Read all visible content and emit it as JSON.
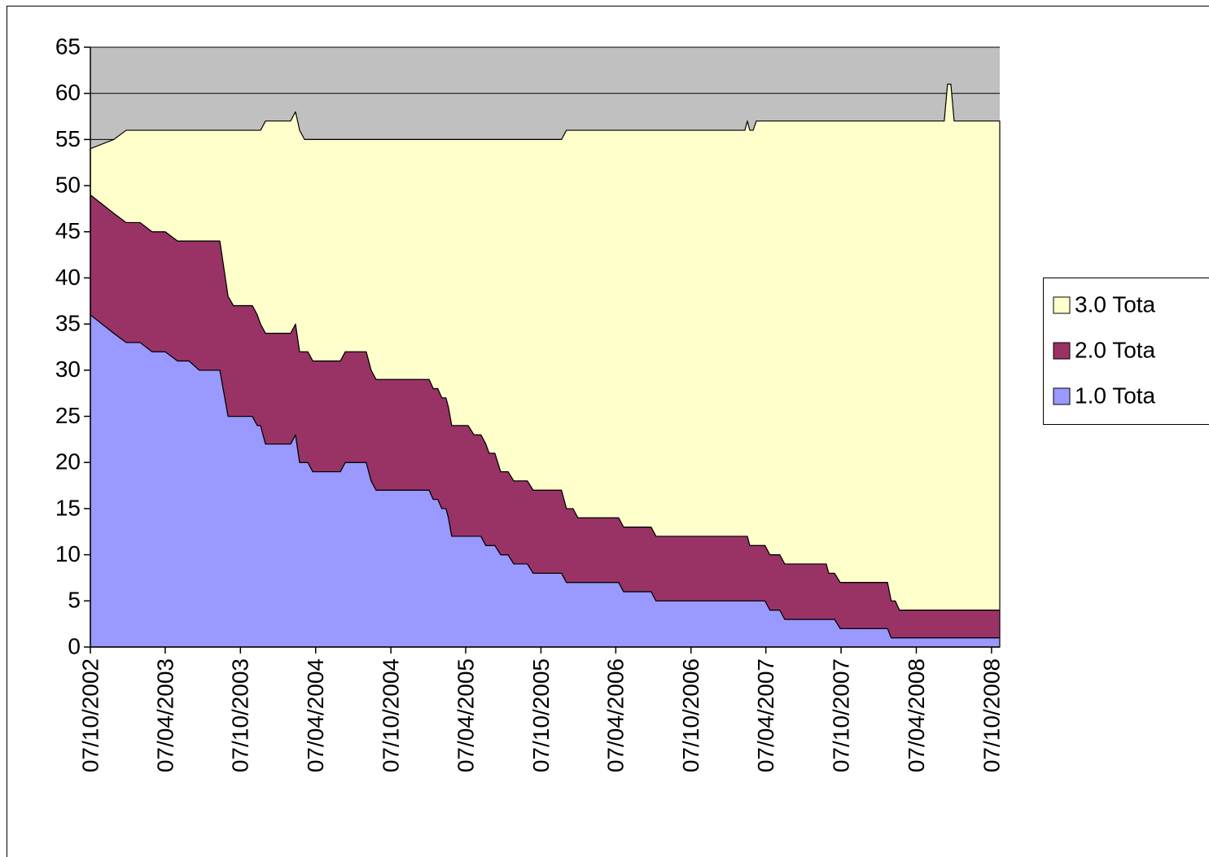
{
  "chart_data": {
    "type": "stacked_area",
    "x": [
      "2002-10-07",
      "2002-12-03",
      "2003-01-02",
      "2003-02-05",
      "2003-03-06",
      "2003-04-07",
      "2003-05-07",
      "2003-06-04",
      "2003-06-29",
      "2003-08-18",
      "2003-09-07",
      "2003-09-20",
      "2003-11-05",
      "2003-11-17",
      "2003-11-25",
      "2003-12-07",
      "2004-02-06",
      "2004-02-18",
      "2004-02-28",
      "2004-03-11",
      "2004-03-19",
      "2004-03-31",
      "2004-06-06",
      "2004-06-18",
      "2004-08-08",
      "2004-08-20",
      "2004-09-01",
      "2005-01-08",
      "2005-01-18",
      "2005-01-29",
      "2005-02-08",
      "2005-02-18",
      "2005-02-24",
      "2005-03-04",
      "2005-04-13",
      "2005-04-27",
      "2005-05-14",
      "2005-05-26",
      "2005-06-03",
      "2005-06-17",
      "2005-07-01",
      "2005-07-19",
      "2005-08-02",
      "2005-09-04",
      "2005-09-18",
      "2005-11-26",
      "2005-12-08",
      "2005-12-24",
      "2006-01-05",
      "2006-04-14",
      "2006-04-26",
      "2006-07-02",
      "2006-07-14",
      "2007-02-15",
      "2007-02-21",
      "2007-02-27",
      "2007-03-07",
      "2007-03-15",
      "2007-04-05",
      "2007-04-17",
      "2007-05-11",
      "2007-05-23",
      "2007-09-01",
      "2007-09-07",
      "2007-09-21",
      "2007-10-05",
      "2008-01-28",
      "2008-02-06",
      "2008-02-16",
      "2008-02-26",
      "2008-06-14",
      "2008-06-22",
      "2008-06-30",
      "2008-07-08",
      "2008-10-27"
    ],
    "series": [
      {
        "name": "1.0 Tota",
        "color": "#9999ff",
        "values": [
          36,
          34,
          33,
          33,
          32,
          32,
          31,
          31,
          30,
          30,
          25,
          25,
          25,
          24,
          24,
          22,
          22,
          23,
          20,
          20,
          20,
          19,
          19,
          20,
          20,
          18,
          17,
          17,
          16,
          16,
          15,
          15,
          14,
          12,
          12,
          12,
          12,
          11,
          11,
          11,
          10,
          10,
          9,
          9,
          8,
          8,
          7,
          7,
          7,
          7,
          6,
          6,
          5,
          5,
          5,
          5,
          5,
          5,
          5,
          4,
          4,
          3,
          3,
          3,
          3,
          2,
          2,
          1,
          1,
          1,
          1,
          1,
          1,
          1,
          1
        ]
      },
      {
        "name": "2.0 Tota",
        "color": "#993366",
        "values": [
          13,
          13,
          13,
          13,
          13,
          13,
          13,
          13,
          14,
          14,
          13,
          12,
          12,
          12,
          11,
          12,
          12,
          12,
          12,
          12,
          12,
          12,
          12,
          12,
          12,
          12,
          12,
          12,
          12,
          12,
          12,
          12,
          12,
          12,
          12,
          11,
          11,
          11,
          10,
          10,
          9,
          9,
          9,
          9,
          9,
          9,
          8,
          8,
          7,
          7,
          7,
          7,
          7,
          7,
          7,
          6,
          6,
          6,
          6,
          6,
          6,
          6,
          6,
          5,
          5,
          5,
          5,
          4,
          4,
          3,
          3,
          3,
          3,
          3,
          3
        ]
      },
      {
        "name": "3.0 Tota",
        "color": "#ffffcc",
        "values": [
          5,
          8,
          10,
          10,
          11,
          11,
          12,
          12,
          12,
          12,
          18,
          19,
          19,
          20,
          21,
          23,
          23,
          23,
          24,
          23,
          23,
          24,
          24,
          23,
          23,
          25,
          26,
          26,
          27,
          27,
          28,
          28,
          29,
          31,
          31,
          32,
          32,
          33,
          34,
          34,
          36,
          36,
          37,
          37,
          38,
          38,
          41,
          41,
          42,
          42,
          43,
          43,
          44,
          44,
          45,
          45,
          45,
          46,
          46,
          47,
          47,
          48,
          48,
          49,
          49,
          50,
          50,
          52,
          52,
          53,
          53,
          57,
          57,
          53,
          53
        ]
      }
    ],
    "xlim": [
      "2002-10-07",
      "2008-10-27"
    ],
    "xticks": [
      {
        "value": "2002-10-07",
        "label": "07/10/2002"
      },
      {
        "value": "2003-04-07",
        "label": "07/04/2003"
      },
      {
        "value": "2003-10-07",
        "label": "07/10/2003"
      },
      {
        "value": "2004-04-07",
        "label": "07/04/2004"
      },
      {
        "value": "2004-10-07",
        "label": "07/10/2004"
      },
      {
        "value": "2005-04-07",
        "label": "07/04/2005"
      },
      {
        "value": "2005-10-07",
        "label": "07/10/2005"
      },
      {
        "value": "2006-04-07",
        "label": "07/04/2006"
      },
      {
        "value": "2006-10-07",
        "label": "07/10/2006"
      },
      {
        "value": "2007-04-07",
        "label": "07/04/2007"
      },
      {
        "value": "2007-10-07",
        "label": "07/10/2007"
      },
      {
        "value": "2008-04-07",
        "label": "07/04/2008"
      },
      {
        "value": "2008-10-07",
        "label": "07/10/2008"
      }
    ],
    "ylim": [
      0,
      65
    ],
    "yticks": [
      0,
      5,
      10,
      15,
      20,
      25,
      30,
      35,
      40,
      45,
      50,
      55,
      60,
      65
    ],
    "grid": true,
    "plot_background": "#c0c0c0",
    "legend": "right"
  }
}
